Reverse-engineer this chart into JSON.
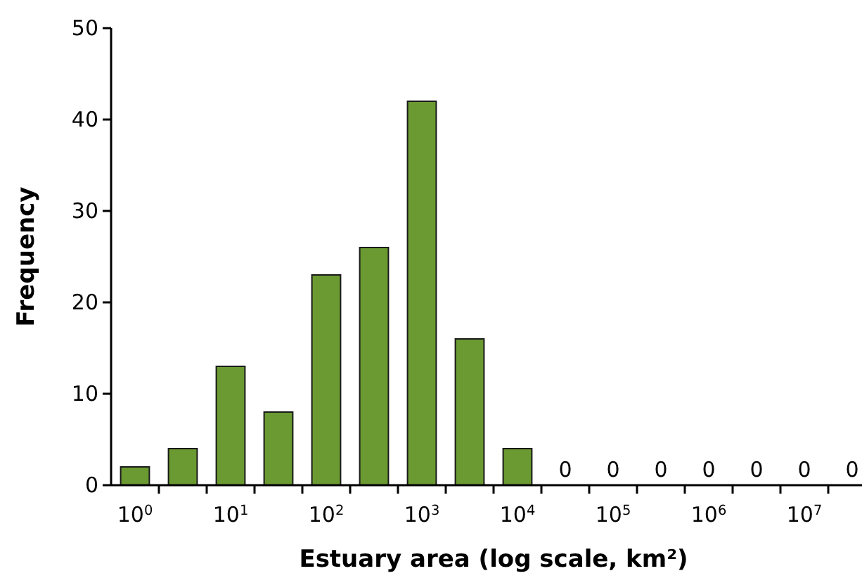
{
  "chart_data": {
    "type": "bar",
    "xlabel": "Estuary area (log scale, km²)",
    "ylabel": "Frequency",
    "categories": [
      "10$^{0}$",
      null,
      "10$^{1}$",
      null,
      "10$^{2}$",
      null,
      "10$^{3}$",
      null,
      "10$^{4}$",
      null,
      "10$^{5}$",
      null,
      "10$^{6}$",
      null,
      "10$^{7}$",
      null
    ],
    "values": [
      2,
      4,
      13,
      8,
      23,
      26,
      42,
      16,
      4,
      0,
      0,
      0,
      0,
      0,
      0,
      0
    ],
    "value_labels": [
      null,
      null,
      null,
      null,
      null,
      null,
      null,
      null,
      null,
      "0",
      "0",
      "0",
      "0",
      "0",
      "0",
      "0"
    ],
    "color": "#6a9a31",
    "ylim": [
      0,
      50
    ],
    "yticks": [
      0,
      10,
      20,
      30,
      40,
      50
    ]
  }
}
